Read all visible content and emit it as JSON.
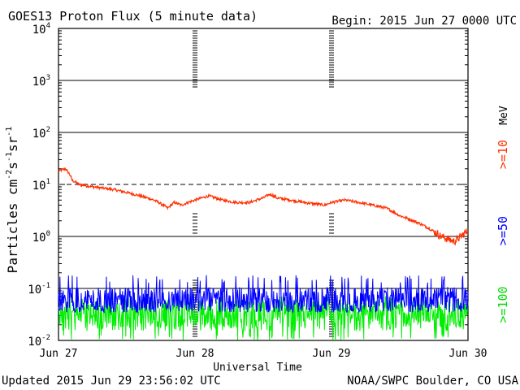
{
  "header": {
    "title": "GOES13 Proton Flux (5 minute data)",
    "begin": "Begin: 2015 Jun 27 0000 UTC"
  },
  "footer": {
    "updated": "Updated 2015 Jun 29 23:56:02 UTC",
    "credit": "NOAA/SWPC Boulder, CO USA"
  },
  "colors": {
    "p10": "#ff3000",
    "p50": "#0000ff",
    "p100": "#00ee00",
    "axis": "#000000"
  },
  "chart_data": {
    "type": "line",
    "title": "GOES13 Proton Flux (5 minute data)",
    "xlabel": "Universal Time",
    "ylabel_main": "Particles cm",
    "ylabel_parts": [
      "-2",
      "s",
      "-1",
      "sr",
      "-1"
    ],
    "yscale": "log",
    "ylim_exp": [
      -2,
      4
    ],
    "ytick_exponents": [
      "4",
      "3",
      "2",
      "1",
      "0",
      "-1",
      "-2"
    ],
    "x_days": [
      0,
      1,
      2,
      3
    ],
    "x_tick_labels": [
      "Jun 27",
      "Jun 28",
      "Jun 29",
      "Jun 30"
    ],
    "threshold_line": 10,
    "legend_unit": "MeV",
    "series": [
      {
        "name": ">=10",
        "color": "#ff3000",
        "x_days": [
          0,
          0.05,
          0.08,
          0.1,
          0.15,
          0.25,
          0.4,
          0.55,
          0.7,
          0.8,
          0.85,
          0.9,
          1.0,
          1.05,
          1.1,
          1.2,
          1.3,
          1.4,
          1.5,
          1.55,
          1.6,
          1.7,
          1.8,
          1.95,
          2.0,
          2.1,
          2.2,
          2.3,
          2.4,
          2.5,
          2.6,
          2.7,
          2.8,
          2.85,
          2.9,
          2.95,
          3.0
        ],
        "values": [
          18,
          20,
          16,
          12,
          10,
          9,
          8,
          6.5,
          5,
          3.5,
          4.5,
          4,
          5,
          5.5,
          6,
          5,
          4.5,
          4.5,
          5.5,
          6.5,
          5.5,
          5,
          4.5,
          4,
          4.5,
          5,
          4.5,
          4,
          3.5,
          2.5,
          2,
          1.5,
          1,
          0.9,
          0.8,
          1.0,
          1.3
        ]
      },
      {
        "name": ">=50",
        "color": "#0000ff",
        "baseline": 0.06,
        "range": [
          0.035,
          0.18
        ]
      },
      {
        "name": ">=100",
        "color": "#00ee00",
        "baseline": 0.03,
        "range": [
          0.01,
          0.07
        ]
      }
    ]
  }
}
